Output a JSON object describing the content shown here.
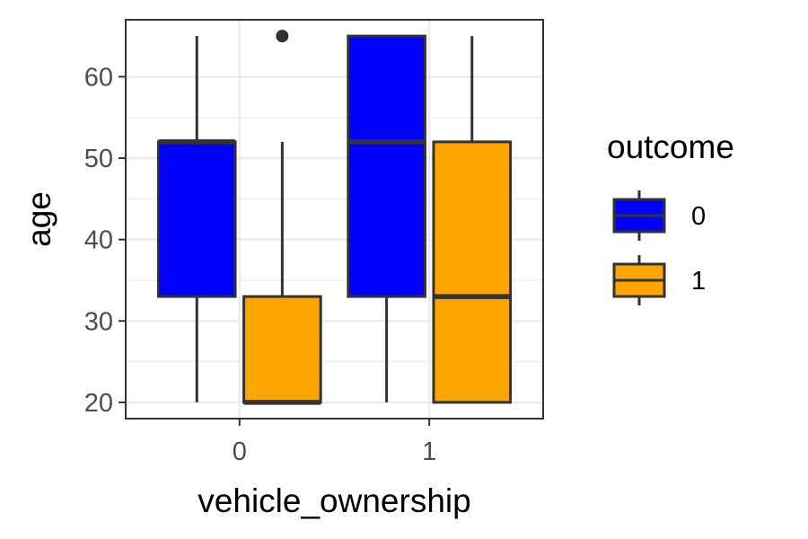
{
  "chart_data": {
    "type": "boxplot",
    "xlabel": "vehicle_ownership",
    "ylabel": "age",
    "categories": [
      "0",
      "1"
    ],
    "ylim": [
      18,
      67
    ],
    "yticks": [
      "20",
      "30",
      "40",
      "50",
      "60"
    ],
    "ytick_values": [
      20,
      30,
      40,
      50,
      60
    ],
    "grid": true,
    "legend": {
      "title": "outcome",
      "position": "right",
      "entries": [
        "0",
        "1"
      ]
    },
    "colors": {
      "0": "#0000ff",
      "1": "#ffa500"
    },
    "series": [
      {
        "group": "0",
        "boxes": [
          {
            "category": "0",
            "whisker_low": 20,
            "q1": 33,
            "median": 52,
            "q3": 52,
            "whisker_high": 65,
            "outliers": []
          },
          {
            "category": "1",
            "whisker_low": 20,
            "q1": 33,
            "median": 52,
            "q3": 65,
            "whisker_high": 65,
            "outliers": []
          }
        ]
      },
      {
        "group": "1",
        "boxes": [
          {
            "category": "0",
            "whisker_low": 20,
            "q1": 20,
            "median": 20,
            "q3": 33,
            "whisker_high": 52,
            "outliers": [
              65
            ]
          },
          {
            "category": "1",
            "whisker_low": 20,
            "q1": 20,
            "median": 33,
            "q3": 52,
            "whisker_high": 65,
            "outliers": []
          }
        ]
      }
    ]
  }
}
